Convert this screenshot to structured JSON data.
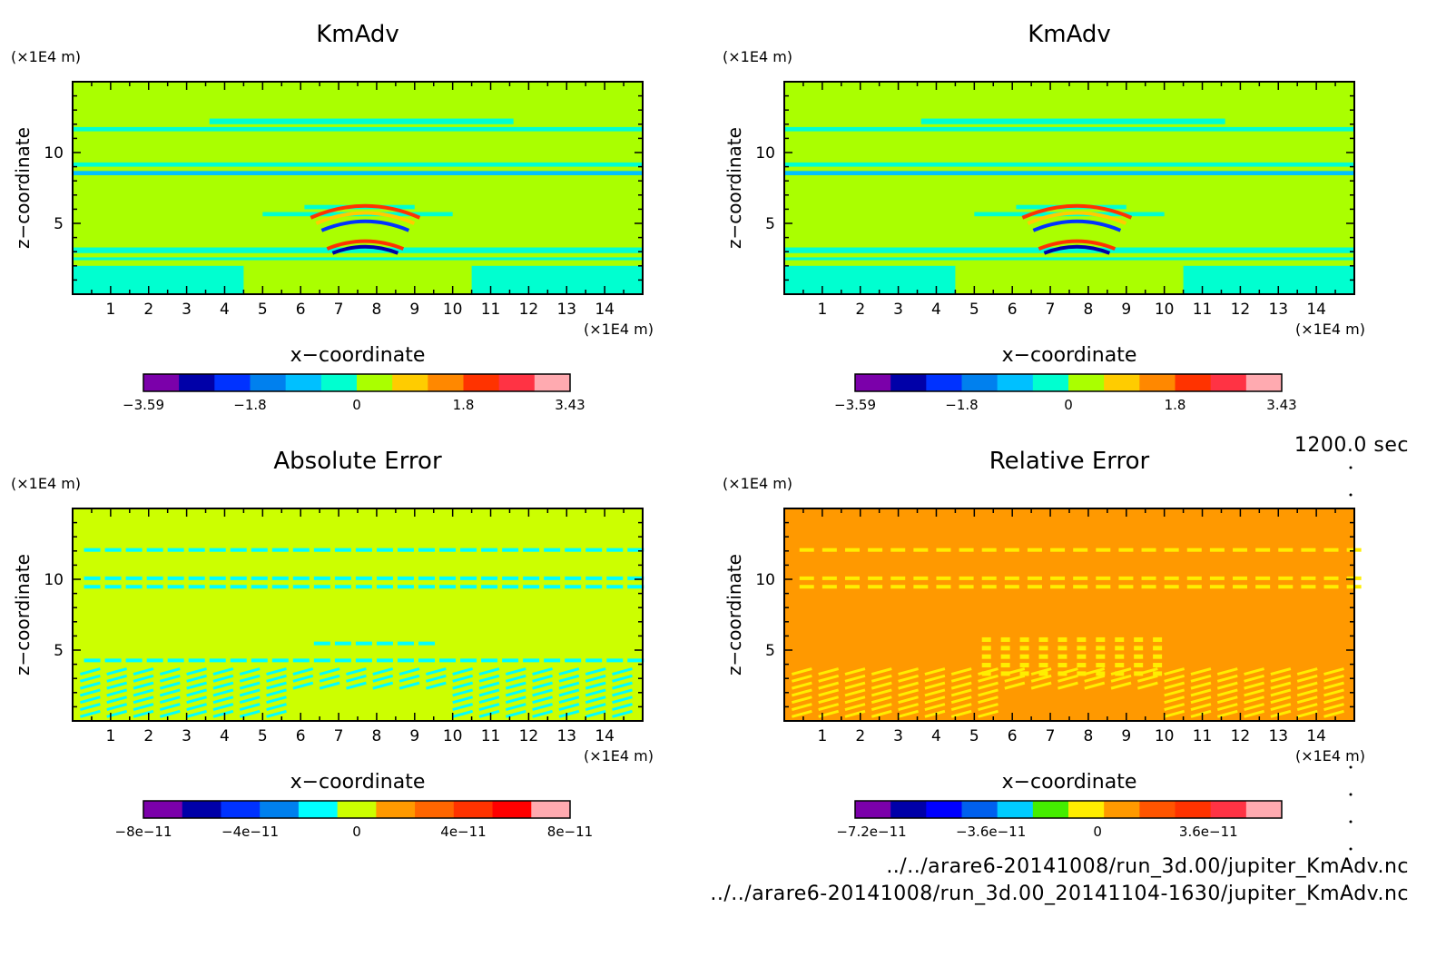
{
  "time_label": "1200.0 sec",
  "files": [
    "../../arare6-20141008/run_3d.00/jupiter_KmAdv.nc",
    "../../arare6-20141008/run_3d.00_20141104-1630/jupiter_KmAdv.nc"
  ],
  "chart_data": [
    {
      "type": "heatmap",
      "title": "KmAdv",
      "xlabel": "x−coordinate",
      "ylabel": "z−coordinate",
      "x_unit": "(×1E4 m)",
      "y_unit": "(×1E4 m)",
      "xlim": [
        0,
        15
      ],
      "ylim": [
        0,
        15
      ],
      "x_ticks": [
        "1",
        "2",
        "3",
        "4",
        "5",
        "6",
        "7",
        "8",
        "9",
        "10",
        "11",
        "12",
        "13",
        "14"
      ],
      "y_ticks": [
        "5",
        "10"
      ],
      "colorbar": {
        "colors": [
          "#7b00aa",
          "#0000a8",
          "#0032ff",
          "#0080ee",
          "#00c0ff",
          "#00ffd0",
          "#aaff00",
          "#ffcc00",
          "#ff8800",
          "#ff3300",
          "#ff3344",
          "#ffaab0"
        ],
        "tick_labels": [
          "−3.59",
          "−1.8",
          "0",
          "1.8",
          "3.43"
        ],
        "range": [
          -3.59,
          3.43
        ]
      },
      "background_color": "#aaff00"
    },
    {
      "type": "heatmap",
      "title": "KmAdv",
      "xlabel": "x−coordinate",
      "ylabel": "z−coordinate",
      "x_unit": "(×1E4 m)",
      "y_unit": "(×1E4 m)",
      "xlim": [
        0,
        15
      ],
      "ylim": [
        0,
        15
      ],
      "x_ticks": [
        "1",
        "2",
        "3",
        "4",
        "5",
        "6",
        "7",
        "8",
        "9",
        "10",
        "11",
        "12",
        "13",
        "14"
      ],
      "y_ticks": [
        "5",
        "10"
      ],
      "colorbar": {
        "colors": [
          "#7b00aa",
          "#0000a8",
          "#0032ff",
          "#0080ee",
          "#00c0ff",
          "#00ffd0",
          "#aaff00",
          "#ffcc00",
          "#ff8800",
          "#ff3300",
          "#ff3344",
          "#ffaab0"
        ],
        "tick_labels": [
          "−3.59",
          "−1.8",
          "0",
          "1.8",
          "3.43"
        ],
        "range": [
          -3.59,
          3.43
        ]
      },
      "background_color": "#aaff00"
    },
    {
      "type": "heatmap",
      "title": "Absolute Error",
      "xlabel": "x−coordinate",
      "ylabel": "z−coordinate",
      "x_unit": "(×1E4 m)",
      "y_unit": "(×1E4 m)",
      "xlim": [
        0,
        15
      ],
      "ylim": [
        0,
        15
      ],
      "x_ticks": [
        "1",
        "2",
        "3",
        "4",
        "5",
        "6",
        "7",
        "8",
        "9",
        "10",
        "11",
        "12",
        "13",
        "14"
      ],
      "y_ticks": [
        "5",
        "10"
      ],
      "colorbar": {
        "colors": [
          "#7b00aa",
          "#0000a8",
          "#0032ff",
          "#0080ee",
          "#00ffff",
          "#ccff00",
          "#ff9900",
          "#ff6600",
          "#ff3300",
          "#ff0000",
          "#ffaab0"
        ],
        "tick_labels": [
          "−8e−11",
          "−4e−11",
          "0",
          "4e−11",
          "8e−11"
        ],
        "range": [
          -1e-10,
          1e-10
        ]
      },
      "background_color": "#ccff00"
    },
    {
      "type": "heatmap",
      "title": "Relative Error",
      "xlabel": "x−coordinate",
      "ylabel": "z−coordinate",
      "x_unit": "(×1E4 m)",
      "y_unit": "(×1E4 m)",
      "xlim": [
        0,
        15
      ],
      "ylim": [
        0,
        15
      ],
      "x_ticks": [
        "1",
        "2",
        "3",
        "4",
        "5",
        "6",
        "7",
        "8",
        "9",
        "10",
        "11",
        "12",
        "13",
        "14"
      ],
      "y_ticks": [
        "5",
        "10"
      ],
      "colorbar": {
        "colors": [
          "#7b00aa",
          "#0000a8",
          "#0000ff",
          "#0060ee",
          "#00ccff",
          "#44ee00",
          "#ffee00",
          "#ff9900",
          "#ff5500",
          "#ff3300",
          "#ff3344",
          "#ffaab0"
        ],
        "tick_labels": [
          "−7.2e−11",
          "−3.6e−11",
          "0",
          "3.6e−11"
        ],
        "range": [
          -9e-11,
          9e-11
        ]
      },
      "background_color": "#ff9900"
    }
  ]
}
